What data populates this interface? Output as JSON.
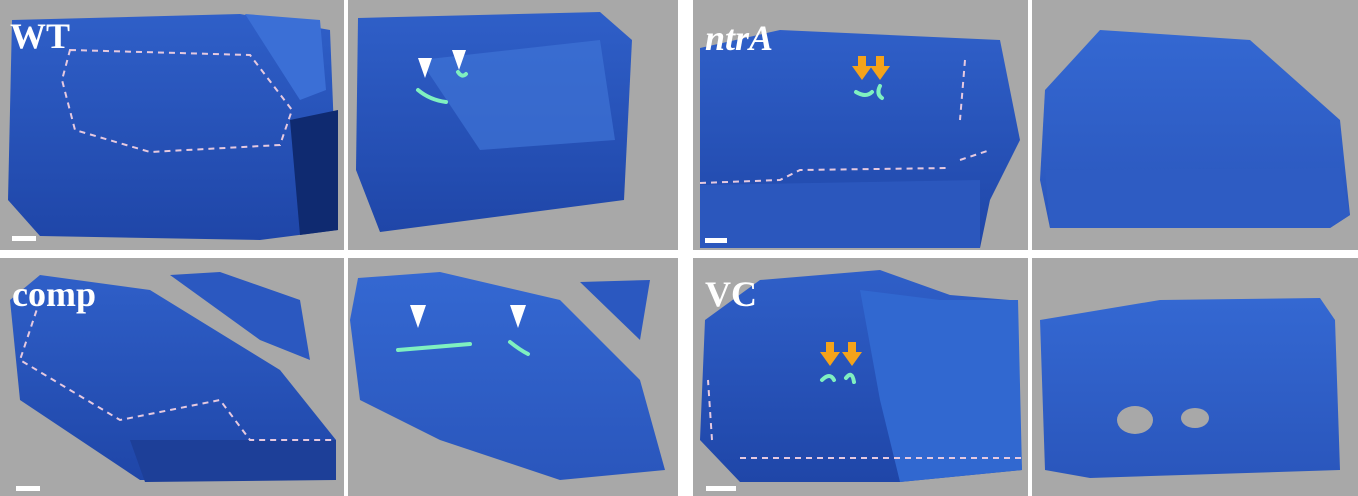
{
  "panels": [
    {
      "label": "WT"
    },
    {
      "label": "ntrA"
    },
    {
      "label": "comp"
    },
    {
      "label": "VC"
    }
  ]
}
